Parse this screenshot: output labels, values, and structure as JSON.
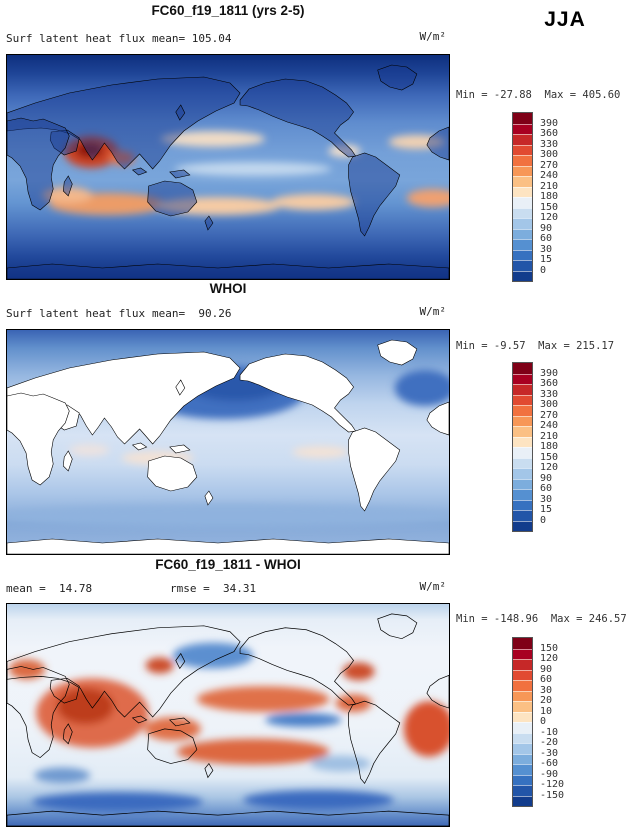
{
  "season_label": "JJA",
  "panels": [
    {
      "title": "FC60_f19_1811 (yrs 2-5)",
      "var_label": "Surf latent heat flux",
      "mean_label": "mean= 105.04",
      "units": "W/m²",
      "minmax": "Min = -27.88  Max = 405.60",
      "cb": {
        "ticks": [
          "390",
          "360",
          "330",
          "300",
          "270",
          "240",
          "210",
          "180",
          "150",
          "120",
          "90",
          "60",
          "30",
          "15",
          "0"
        ],
        "colors": [
          "#7f0017",
          "#a80021",
          "#c62828",
          "#e14a31",
          "#f1713f",
          "#f79757",
          "#fbc084",
          "#fde4c2",
          "#e9f0f7",
          "#c9ddf0",
          "#a3c6e8",
          "#7caddd",
          "#5590d1",
          "#3671c0",
          "#2255a8",
          "#123c8c"
        ]
      }
    },
    {
      "title": "WHOI",
      "var_label": "Surf latent heat flux",
      "mean_label": "mean=  90.26",
      "units": "W/m²",
      "minmax": "Min = -9.57  Max = 215.17",
      "cb": {
        "ticks": [
          "390",
          "360",
          "330",
          "300",
          "270",
          "240",
          "210",
          "180",
          "150",
          "120",
          "90",
          "60",
          "30",
          "15",
          "0"
        ],
        "colors": [
          "#7f0017",
          "#a80021",
          "#c62828",
          "#e14a31",
          "#f1713f",
          "#f79757",
          "#fbc084",
          "#fde4c2",
          "#e9f0f7",
          "#c9ddf0",
          "#a3c6e8",
          "#7caddd",
          "#5590d1",
          "#3671c0",
          "#2255a8",
          "#123c8c"
        ]
      }
    },
    {
      "title": "FC60_f19_1811 - WHOI",
      "mean_label": "mean =  14.78",
      "rmse_label": "rmse =  34.31",
      "units": "W/m²",
      "minmax": "Min = -148.96  Max = 246.57",
      "cb": {
        "ticks": [
          "150",
          "120",
          "90",
          "60",
          "30",
          "20",
          "10",
          "0",
          "-10",
          "-20",
          "-30",
          "-60",
          "-90",
          "-120",
          "-150"
        ],
        "colors": [
          "#7f0017",
          "#a80021",
          "#c62828",
          "#e14a31",
          "#f1713f",
          "#f79757",
          "#fbc084",
          "#fde4c2",
          "#e9f0f7",
          "#c9ddf0",
          "#a3c6e8",
          "#7caddd",
          "#5590d1",
          "#3671c0",
          "#2255a8",
          "#123c8c"
        ]
      }
    }
  ],
  "chart_data": [
    {
      "type": "heatmap",
      "panel": "model",
      "title": "FC60_f19_1811 (yrs 2-5)",
      "variable": "Surf latent heat flux",
      "season": "JJA",
      "units": "W/m²",
      "mean": 105.04,
      "min": -27.88,
      "max": 405.6,
      "contour_levels": [
        0,
        15,
        30,
        60,
        90,
        120,
        150,
        180,
        210,
        240,
        270,
        300,
        330,
        360,
        390
      ],
      "extent": {
        "lon": [
          0,
          360
        ],
        "lat": [
          -90,
          90
        ]
      },
      "colormap": "blue-to-red diverging, 16 bins",
      "legend_position": "right"
    },
    {
      "type": "heatmap",
      "panel": "observation",
      "title": "WHOI",
      "variable": "Surf latent heat flux",
      "season": "JJA",
      "units": "W/m²",
      "mean": 90.26,
      "min": -9.57,
      "max": 215.17,
      "contour_levels": [
        0,
        15,
        30,
        60,
        90,
        120,
        150,
        180,
        210,
        240,
        270,
        300,
        330,
        360,
        390
      ],
      "extent": {
        "lon": [
          0,
          360
        ],
        "lat": [
          -90,
          90
        ]
      },
      "colormap": "blue-to-red diverging, 16 bins",
      "legend_position": "right",
      "notes": "land masked white (ocean-only observations)"
    },
    {
      "type": "heatmap",
      "panel": "difference",
      "title": "FC60_f19_1811 - WHOI",
      "variable": "Surf latent heat flux difference",
      "season": "JJA",
      "units": "W/m²",
      "mean": 14.78,
      "rmse": 34.31,
      "min": -148.96,
      "max": 246.57,
      "contour_levels": [
        -150,
        -120,
        -90,
        -60,
        -30,
        -20,
        -10,
        0,
        10,
        20,
        30,
        60,
        90,
        120,
        150
      ],
      "extent": {
        "lon": [
          0,
          360
        ],
        "lat": [
          -90,
          90
        ]
      },
      "colormap": "blue-to-red diverging, 16 bins",
      "legend_position": "right"
    }
  ]
}
